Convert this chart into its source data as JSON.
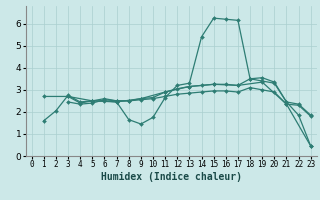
{
  "xlabel": "Humidex (Indice chaleur)",
  "xlim": [
    -0.5,
    23.5
  ],
  "ylim": [
    0,
    6.8
  ],
  "xticks": [
    0,
    1,
    2,
    3,
    4,
    5,
    6,
    7,
    8,
    9,
    10,
    11,
    12,
    13,
    14,
    15,
    16,
    17,
    18,
    19,
    20,
    21,
    22,
    23
  ],
  "yticks": [
    0,
    1,
    2,
    3,
    4,
    5,
    6
  ],
  "bg_color": "#cce8e8",
  "line_color": "#2e7d74",
  "grid_color": "#aacfcf",
  "lines": [
    {
      "x": [
        1,
        2,
        3,
        4,
        5,
        6,
        7,
        8,
        9,
        10,
        11,
        12,
        13,
        14,
        15,
        16,
        17,
        18,
        19,
        20,
        21,
        22,
        23
      ],
      "y": [
        1.6,
        2.05,
        2.75,
        2.45,
        2.5,
        2.5,
        2.45,
        1.65,
        1.45,
        1.75,
        2.65,
        3.2,
        3.3,
        5.4,
        6.25,
        6.2,
        6.15,
        3.5,
        3.55,
        3.35,
        2.45,
        1.85,
        0.45
      ]
    },
    {
      "x": [
        3,
        4,
        5,
        6,
        7,
        8,
        9,
        10,
        11,
        12,
        13,
        14,
        15,
        16,
        17,
        18,
        19,
        20,
        21,
        22,
        23
      ],
      "y": [
        2.7,
        2.4,
        2.5,
        2.6,
        2.5,
        2.5,
        2.6,
        2.65,
        2.9,
        3.05,
        3.15,
        3.2,
        3.25,
        3.25,
        3.2,
        3.5,
        3.4,
        3.3,
        2.45,
        2.35,
        1.85
      ]
    },
    {
      "x": [
        3,
        4,
        5,
        6,
        7,
        8,
        9,
        10,
        11,
        12,
        13,
        14,
        15,
        16,
        17,
        18,
        19,
        20,
        21,
        22,
        23
      ],
      "y": [
        2.45,
        2.35,
        2.4,
        2.55,
        2.5,
        2.5,
        2.55,
        2.6,
        2.7,
        2.8,
        2.85,
        2.9,
        2.95,
        2.95,
        2.9,
        3.1,
        3.0,
        2.9,
        2.35,
        2.3,
        1.8
      ]
    },
    {
      "x": [
        1,
        3,
        5,
        7,
        9,
        11,
        13,
        15,
        17,
        19,
        21,
        23
      ],
      "y": [
        2.7,
        2.7,
        2.5,
        2.45,
        2.6,
        2.9,
        3.15,
        3.25,
        3.2,
        3.35,
        2.35,
        0.45
      ]
    }
  ]
}
